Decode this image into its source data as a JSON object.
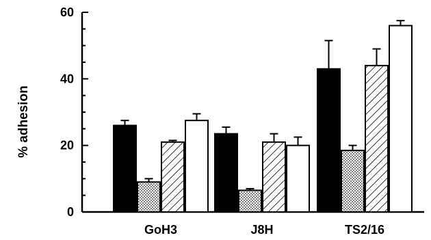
{
  "chart_data": {
    "type": "bar",
    "title": "",
    "xlabel": "",
    "ylabel": "% adhesion",
    "ylim": [
      0,
      60
    ],
    "yticks": [
      0,
      20,
      40,
      60
    ],
    "grid": false,
    "categories": [
      "GoH3",
      "J8H",
      "TS2/16"
    ],
    "series": [
      {
        "fill": "solid",
        "color": "#000000",
        "values": [
          26,
          23.5,
          43
        ],
        "errors": [
          1.5,
          2,
          8.5
        ]
      },
      {
        "fill": "dotted",
        "color": "#bfbfbf",
        "values": [
          9,
          6.5,
          18.5
        ],
        "errors": [
          1,
          0.5,
          1.5
        ]
      },
      {
        "fill": "hatched",
        "color": "#ffffff",
        "values": [
          21,
          21,
          44
        ],
        "errors": [
          0.5,
          2.5,
          5
        ]
      },
      {
        "fill": "open",
        "color": "#ffffff",
        "values": [
          27.5,
          20,
          56
        ],
        "errors": [
          2,
          2.5,
          1.5
        ]
      }
    ]
  }
}
